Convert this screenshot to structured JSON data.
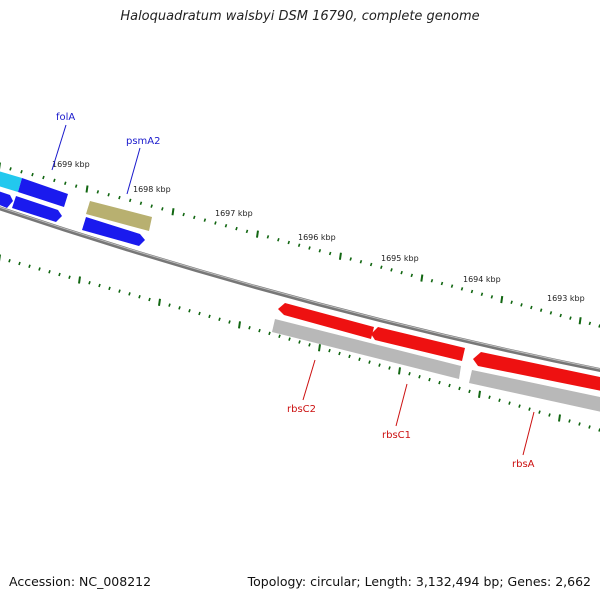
{
  "title": "Haloquadratum walsbyi DSM 16790, complete genome",
  "footer": {
    "accession": "Accession: NC_008212",
    "summary": "Topology: circular; Length: 3,132,494 bp; Genes: 2,662"
  },
  "colors": {
    "forward_gene": "#1a1aee",
    "forward_gene_alt": "#22c8ee",
    "reverse_gene": "#ee1111",
    "olive_gene": "#b8b070",
    "cds_grey": "#b8b8b8",
    "backbone": "#777777",
    "tick": "#116611",
    "label_blue": "#1a1acc",
    "label_red": "#cc1111"
  },
  "ticks": [
    {
      "label": "1699 kbp"
    },
    {
      "label": "1698 kbp"
    },
    {
      "label": "1697 kbp"
    },
    {
      "label": "1696 kbp"
    },
    {
      "label": "1695 kbp"
    },
    {
      "label": "1694 kbp"
    },
    {
      "label": "1693 kbp"
    }
  ],
  "genes": [
    {
      "name": "folA",
      "strand": "forward",
      "color": "blue"
    },
    {
      "name": "psmA2",
      "strand": "forward",
      "color": "olive"
    },
    {
      "name": "rbsC2",
      "strand": "reverse",
      "color": "red"
    },
    {
      "name": "rbsC1",
      "strand": "reverse",
      "color": "red"
    },
    {
      "name": "rbsA",
      "strand": "reverse",
      "color": "red"
    }
  ]
}
